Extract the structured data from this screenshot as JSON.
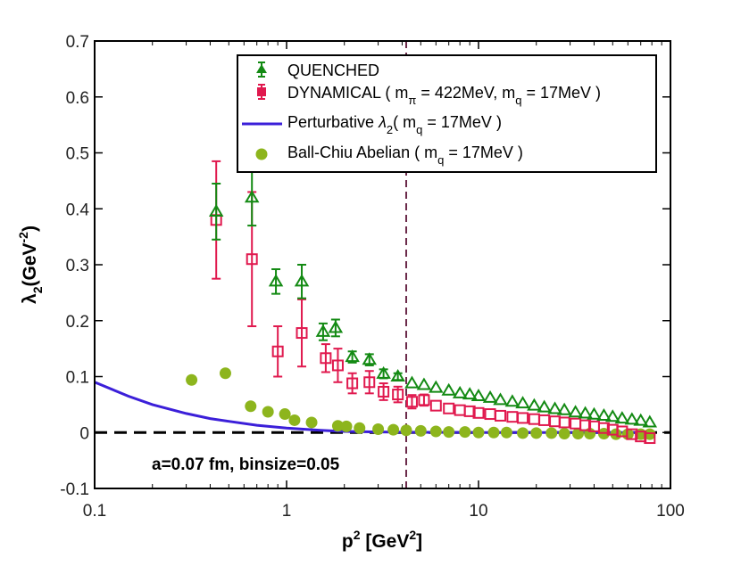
{
  "chart_data": {
    "type": "scatter",
    "x_scale": "log",
    "xlim": [
      0.1,
      100
    ],
    "ylim": [
      -0.1,
      0.7
    ],
    "xlabel": "p",
    "xlabel_sup": "2",
    "xlabel_unit": "[GeV",
    "xlabel_unit_sup": "2",
    "xlabel_unit_close": "]",
    "ylabel": "λ",
    "ylabel_sub": "2",
    "ylabel_unit": "(GeV",
    "ylabel_unit_sup": "-2",
    "ylabel_unit_close": ")",
    "x_ticks": [
      {
        "value": 0.1,
        "label": "0.1"
      },
      {
        "value": 1,
        "label": "1"
      },
      {
        "value": 10,
        "label": "10"
      },
      {
        "value": 100,
        "label": "100"
      }
    ],
    "y_ticks": [
      {
        "value": -0.1,
        "label": "-0.1"
      },
      {
        "value": 0,
        "label": "0"
      },
      {
        "value": 0.1,
        "label": "0.1"
      },
      {
        "value": 0.2,
        "label": "0.2"
      },
      {
        "value": 0.3,
        "label": "0.3"
      },
      {
        "value": 0.4,
        "label": "0.4"
      },
      {
        "value": 0.5,
        "label": "0.5"
      },
      {
        "value": 0.6,
        "label": "0.6"
      },
      {
        "value": 0.7,
        "label": "0.7"
      }
    ],
    "annotation": "a=0.07 fm, binsize=0.05",
    "vertical_line_x": 4.2,
    "zero_line_y": 0,
    "legend": {
      "position": "top-right",
      "entries": [
        {
          "series": "quenched",
          "label": "QUENCHED"
        },
        {
          "series": "dynamical",
          "label": "DYNAMICAL ( m",
          "sub1": "π",
          "mid": " = 422MeV, m",
          "sub2": "q",
          "tail": " = 17MeV  )"
        },
        {
          "series": "perturbative",
          "label": "Perturbative ",
          "lambda": "λ",
          "sub1": "2",
          "mid": "( m",
          "sub2": "q",
          "tail": " = 17MeV )"
        },
        {
          "series": "ballchiu",
          "label": "Ball-Chiu Abelian ( m",
          "sub1": "q",
          "tail": " = 17MeV )"
        }
      ]
    },
    "colors": {
      "quenched": "#138a13",
      "dynamical": "#e0194e",
      "perturbative": "#3b1fd9",
      "ballchiu": "#8db51d",
      "vline": "#6b2a4a"
    },
    "series": [
      {
        "name": "quenched",
        "marker": "triangle-open",
        "points": [
          {
            "x": 0.43,
            "y": 0.395,
            "err": 0.05
          },
          {
            "x": 0.66,
            "y": 0.42,
            "err": 0.05
          },
          {
            "x": 0.88,
            "y": 0.27,
            "err": 0.022
          },
          {
            "x": 1.2,
            "y": 0.27,
            "err": 0.03
          },
          {
            "x": 1.55,
            "y": 0.18,
            "err": 0.015
          },
          {
            "x": 1.8,
            "y": 0.187,
            "err": 0.015
          },
          {
            "x": 2.2,
            "y": 0.135,
            "err": 0.01
          },
          {
            "x": 2.7,
            "y": 0.13,
            "err": 0.01
          },
          {
            "x": 3.2,
            "y": 0.105,
            "err": 0.008
          },
          {
            "x": 3.8,
            "y": 0.1,
            "err": 0.006
          },
          {
            "x": 4.5,
            "y": 0.088
          },
          {
            "x": 5.2,
            "y": 0.085
          },
          {
            "x": 6.0,
            "y": 0.08
          },
          {
            "x": 7.0,
            "y": 0.075
          },
          {
            "x": 8.0,
            "y": 0.07
          },
          {
            "x": 9.0,
            "y": 0.068
          },
          {
            "x": 10.0,
            "y": 0.065
          },
          {
            "x": 11.5,
            "y": 0.062
          },
          {
            "x": 13.0,
            "y": 0.058
          },
          {
            "x": 15.0,
            "y": 0.055
          },
          {
            "x": 17.0,
            "y": 0.052
          },
          {
            "x": 19.5,
            "y": 0.048
          },
          {
            "x": 22.0,
            "y": 0.045
          },
          {
            "x": 25.0,
            "y": 0.042
          },
          {
            "x": 28.0,
            "y": 0.04
          },
          {
            "x": 32.0,
            "y": 0.036
          },
          {
            "x": 36.0,
            "y": 0.034
          },
          {
            "x": 40.0,
            "y": 0.032
          },
          {
            "x": 45.0,
            "y": 0.03
          },
          {
            "x": 50.0,
            "y": 0.028
          },
          {
            "x": 56.0,
            "y": 0.025
          },
          {
            "x": 63.0,
            "y": 0.023
          },
          {
            "x": 70.0,
            "y": 0.021
          },
          {
            "x": 78.0,
            "y": 0.018
          }
        ]
      },
      {
        "name": "dynamical",
        "marker": "square-open",
        "points": [
          {
            "x": 0.43,
            "y": 0.38,
            "err": 0.105
          },
          {
            "x": 0.66,
            "y": 0.31,
            "err": 0.12
          },
          {
            "x": 0.9,
            "y": 0.145,
            "err": 0.045
          },
          {
            "x": 1.2,
            "y": 0.178,
            "err": 0.06
          },
          {
            "x": 1.6,
            "y": 0.133,
            "err": 0.025
          },
          {
            "x": 1.85,
            "y": 0.12,
            "err": 0.03
          },
          {
            "x": 2.2,
            "y": 0.088,
            "err": 0.018
          },
          {
            "x": 2.7,
            "y": 0.09,
            "err": 0.02
          },
          {
            "x": 3.2,
            "y": 0.073,
            "err": 0.015
          },
          {
            "x": 3.8,
            "y": 0.068,
            "err": 0.014
          },
          {
            "x": 4.5,
            "y": 0.055,
            "err": 0.012
          },
          {
            "x": 5.2,
            "y": 0.058,
            "err": 0.01
          },
          {
            "x": 6.0,
            "y": 0.048
          },
          {
            "x": 7.0,
            "y": 0.043
          },
          {
            "x": 8.0,
            "y": 0.04
          },
          {
            "x": 9.0,
            "y": 0.038
          },
          {
            "x": 10.0,
            "y": 0.035
          },
          {
            "x": 11.5,
            "y": 0.033
          },
          {
            "x": 13.0,
            "y": 0.03
          },
          {
            "x": 15.0,
            "y": 0.028
          },
          {
            "x": 17.0,
            "y": 0.026
          },
          {
            "x": 19.5,
            "y": 0.024
          },
          {
            "x": 22.0,
            "y": 0.022
          },
          {
            "x": 25.0,
            "y": 0.02
          },
          {
            "x": 28.0,
            "y": 0.018
          },
          {
            "x": 32.0,
            "y": 0.016
          },
          {
            "x": 36.0,
            "y": 0.013
          },
          {
            "x": 40.0,
            "y": 0.011
          },
          {
            "x": 45.0,
            "y": 0.008
          },
          {
            "x": 50.0,
            "y": 0.005
          },
          {
            "x": 56.0,
            "y": 0.002
          },
          {
            "x": 63.0,
            "y": -0.003
          },
          {
            "x": 70.0,
            "y": -0.007
          },
          {
            "x": 78.0,
            "y": -0.01
          }
        ]
      },
      {
        "name": "ballchiu",
        "marker": "circle-filled",
        "points": [
          {
            "x": 0.32,
            "y": 0.094
          },
          {
            "x": 0.48,
            "y": 0.106
          },
          {
            "x": 0.65,
            "y": 0.047
          },
          {
            "x": 0.8,
            "y": 0.037
          },
          {
            "x": 0.98,
            "y": 0.033
          },
          {
            "x": 1.1,
            "y": 0.022
          },
          {
            "x": 1.35,
            "y": 0.018
          },
          {
            "x": 1.85,
            "y": 0.012
          },
          {
            "x": 2.05,
            "y": 0.011
          },
          {
            "x": 2.4,
            "y": 0.008
          },
          {
            "x": 3.0,
            "y": 0.006
          },
          {
            "x": 3.6,
            "y": 0.005
          },
          {
            "x": 4.2,
            "y": 0.004
          },
          {
            "x": 5.0,
            "y": 0.003
          },
          {
            "x": 6.0,
            "y": 0.002
          },
          {
            "x": 7.0,
            "y": 0.001
          },
          {
            "x": 8.5,
            "y": 0.001
          },
          {
            "x": 10.0,
            "y": 0.0
          },
          {
            "x": 12.0,
            "y": 0.0
          },
          {
            "x": 14.0,
            "y": 0.0
          },
          {
            "x": 17.0,
            "y": -0.001
          },
          {
            "x": 20.0,
            "y": -0.001
          },
          {
            "x": 24.0,
            "y": -0.001
          },
          {
            "x": 28.0,
            "y": -0.002
          },
          {
            "x": 33.0,
            "y": -0.002
          },
          {
            "x": 38.0,
            "y": -0.002
          },
          {
            "x": 45.0,
            "y": -0.002
          },
          {
            "x": 52.0,
            "y": -0.003
          },
          {
            "x": 60.0,
            "y": -0.003
          },
          {
            "x": 70.0,
            "y": -0.003
          },
          {
            "x": 78.0,
            "y": -0.003
          }
        ]
      },
      {
        "name": "perturbative",
        "marker": "line",
        "points": [
          {
            "x": 0.1,
            "y": 0.09
          },
          {
            "x": 0.15,
            "y": 0.065
          },
          {
            "x": 0.2,
            "y": 0.05
          },
          {
            "x": 0.3,
            "y": 0.034
          },
          {
            "x": 0.4,
            "y": 0.025
          },
          {
            "x": 0.5,
            "y": 0.02
          },
          {
            "x": 0.7,
            "y": 0.013
          },
          {
            "x": 1.0,
            "y": 0.008
          },
          {
            "x": 1.5,
            "y": 0.004
          },
          {
            "x": 2.0,
            "y": 0.002
          },
          {
            "x": 3.0,
            "y": 0.001
          },
          {
            "x": 5.0,
            "y": 0.0004
          },
          {
            "x": 10.0,
            "y": 0.0001
          },
          {
            "x": 30.0,
            "y": 0.0
          },
          {
            "x": 80.0,
            "y": 0.0
          }
        ]
      }
    ]
  }
}
